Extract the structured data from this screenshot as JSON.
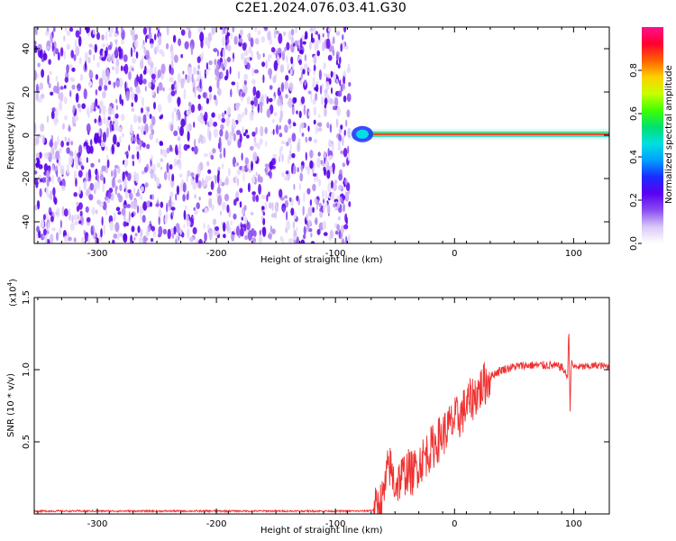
{
  "title": "C2E1.2024.076.03.41.G30",
  "chart_data": [
    {
      "type": "heatmap",
      "xlabel": "Height of straight line (km)",
      "ylabel": "Frequency (Hz)",
      "xlim": [
        -353,
        130
      ],
      "ylim": [
        -50,
        50
      ],
      "xticks": [
        -300,
        -200,
        -100,
        0,
        100
      ],
      "yticks": [
        -40,
        -20,
        0,
        20,
        40
      ],
      "colorbar": {
        "label": "Normalized spectral amplitude",
        "range": [
          0,
          1
        ],
        "ticks": [
          0.0,
          0.2,
          0.4,
          0.6,
          0.8
        ],
        "colors": [
          "#ffffff",
          "#d9c8f7",
          "#8a4df0",
          "#5a00f0",
          "#1a2cff",
          "#00a0ff",
          "#00e0e0",
          "#00e070",
          "#40ff00",
          "#c8ff00",
          "#ffd000",
          "#ff6000",
          "#ff0030",
          "#ff1090"
        ]
      },
      "regions": [
        {
          "label": "noise",
          "x": [
            -353,
            -88
          ],
          "y": [
            -50,
            50
          ],
          "amplitude": 0.15
        },
        {
          "label": "signal",
          "x": [
            -88,
            130
          ],
          "center_frequency": 0.5,
          "peak_amplitude": 0.9
        },
        {
          "label": "blank",
          "x": [
            -88,
            130
          ],
          "y": [
            -50,
            50
          ],
          "amplitude": 0
        }
      ]
    },
    {
      "type": "line",
      "xlabel": "Height of straight line (km)",
      "ylabel": "SNR (10 * v/v)",
      "multiplier": "(x10",
      "multiplier_exp": "4",
      "multiplier_close": ")",
      "xlim": [
        -353,
        130
      ],
      "ylim": [
        0,
        1.5
      ],
      "xticks": [
        -300,
        -200,
        -100,
        0,
        100
      ],
      "yticks": [
        0.5,
        1.0,
        1.5
      ],
      "series": [
        {
          "color": "#f03030",
          "x": [
            -353,
            -300,
            -250,
            -200,
            -150,
            -100,
            -75,
            -66,
            -60,
            -55,
            -50,
            -45,
            -40,
            -35,
            -30,
            -25,
            -20,
            -15,
            -10,
            -5,
            0,
            5,
            10,
            15,
            20,
            25,
            30,
            35,
            40,
            50,
            60,
            70,
            80,
            90,
            95,
            96,
            97,
            98,
            100,
            110,
            120,
            130
          ],
          "y": [
            0.02,
            0.02,
            0.02,
            0.02,
            0.02,
            0.02,
            0.02,
            0.03,
            0.1,
            0.35,
            0.2,
            0.25,
            0.3,
            0.28,
            0.35,
            0.4,
            0.45,
            0.5,
            0.55,
            0.6,
            0.65,
            0.68,
            0.75,
            0.8,
            0.85,
            0.9,
            0.95,
            0.98,
            1.0,
            1.02,
            1.03,
            1.03,
            1.03,
            1.02,
            0.95,
            1.3,
            0.7,
            1.05,
            1.02,
            1.02,
            1.03,
            1.02
          ]
        }
      ]
    }
  ]
}
